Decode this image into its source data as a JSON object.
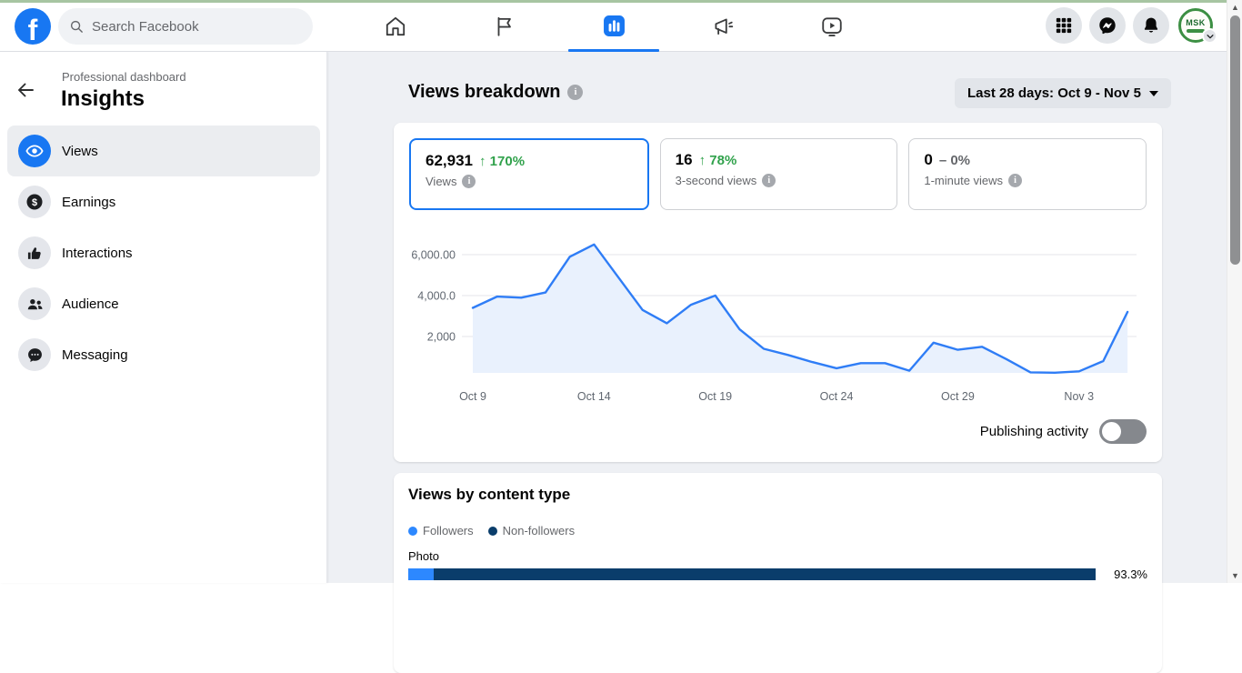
{
  "topnav": {
    "search_placeholder": "Search Facebook",
    "tabs": [
      {
        "name": "home"
      },
      {
        "name": "pages"
      },
      {
        "name": "insights",
        "active": true
      },
      {
        "name": "ads"
      },
      {
        "name": "video"
      }
    ],
    "avatar_text": "MSK"
  },
  "sidebar": {
    "eyebrow": "Professional dashboard",
    "title": "Insights",
    "items": [
      {
        "label": "Views",
        "active": true
      },
      {
        "label": "Earnings"
      },
      {
        "label": "Interactions"
      },
      {
        "label": "Audience"
      },
      {
        "label": "Messaging"
      }
    ]
  },
  "main": {
    "header": {
      "title": "Views breakdown",
      "date_range": "Last 28 days: Oct 9 - Nov 5"
    },
    "stat_cards": [
      {
        "value": "62,931",
        "delta": "↑ 170%",
        "delta_color": "#31a24c",
        "label": "Views",
        "selected": true
      },
      {
        "value": "16",
        "delta": "↑ 78%",
        "delta_color": "#31a24c",
        "label": "3-second views",
        "selected": false
      },
      {
        "value": "0",
        "delta": "– 0%",
        "delta_color": "#65676b",
        "label": "1-minute views",
        "selected": false
      }
    ],
    "toggle": {
      "label": "Publishing activity",
      "state": "off"
    },
    "content_type": {
      "title": "Views by content type",
      "legend": [
        {
          "label": "Followers",
          "color": "#2d88ff"
        },
        {
          "label": "Non-followers",
          "color": "#0a3d6b"
        }
      ],
      "rows": [
        {
          "label": "Photo",
          "total_label": "93.3%",
          "segments": [
            {
              "name": "Followers",
              "width_pct": 3.7,
              "color": "#2d88ff"
            },
            {
              "name": "Non-followers",
              "width_pct": 96.3,
              "color": "#0a3d6b"
            }
          ]
        }
      ]
    }
  },
  "chart_data": {
    "type": "area",
    "title": "Views trend, last 28 days",
    "x": [
      "Oct 9",
      "Oct 10",
      "Oct 11",
      "Oct 12",
      "Oct 13",
      "Oct 14",
      "Oct 15",
      "Oct 16",
      "Oct 17",
      "Oct 18",
      "Oct 19",
      "Oct 20",
      "Oct 21",
      "Oct 22",
      "Oct 23",
      "Oct 24",
      "Oct 25",
      "Oct 26",
      "Oct 27",
      "Oct 28",
      "Oct 29",
      "Oct 30",
      "Oct 31",
      "Nov 1",
      "Nov 2",
      "Nov 3",
      "Nov 4",
      "Nov 5"
    ],
    "values": [
      3400,
      3950,
      3900,
      4150,
      5900,
      6500,
      4900,
      3300,
      2650,
      3550,
      4000,
      2350,
      1400,
      1100,
      750,
      450,
      700,
      700,
      330,
      1700,
      1350,
      1500,
      900,
      250,
      230,
      300,
      800,
      3200
    ],
    "ylim": [
      0,
      7000
    ],
    "y_gridlines": [
      {
        "value": 2000,
        "label": "2,000"
      },
      {
        "value": 4000,
        "label": "4,000.0"
      },
      {
        "value": 6000,
        "label": "6,000.00"
      }
    ],
    "x_ticks": [
      {
        "index": 0,
        "label": "Oct 9"
      },
      {
        "index": 5,
        "label": "Oct 14"
      },
      {
        "index": 10,
        "label": "Oct 19"
      },
      {
        "index": 15,
        "label": "Oct 24"
      },
      {
        "index": 20,
        "label": "Oct 29"
      },
      {
        "index": 25,
        "label": "Nov 3"
      }
    ],
    "line_color": "#2f7df6",
    "area_fill": "#e9f1fd",
    "grid_color": "#e4e6ea",
    "legend_position": "none"
  }
}
